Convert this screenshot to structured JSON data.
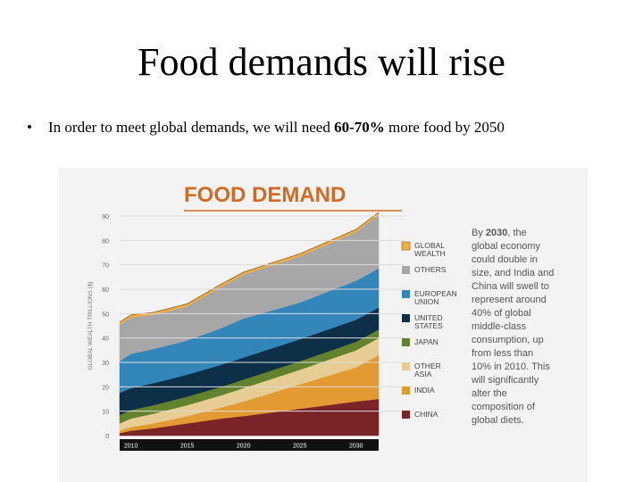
{
  "slide": {
    "title": "Food demands will rise",
    "bullet": {
      "before": "In order to meet global demands, we will need ",
      "bold": "60-70%",
      "after": " more food by 2050"
    }
  },
  "chart_data": {
    "type": "area",
    "stacked": true,
    "title": "FOOD DEMAND",
    "ylabel": "GLOBAL WEALTH TRILLIONS ($)",
    "xlabel": "",
    "ylim": [
      0,
      90
    ],
    "yticks": [
      0,
      10,
      20,
      30,
      40,
      50,
      60,
      70,
      80,
      90
    ],
    "xticks": [
      2010,
      2015,
      2020,
      2025,
      2030
    ],
    "x": [
      2009,
      2010,
      2012,
      2015,
      2018,
      2020,
      2025,
      2030,
      2032
    ],
    "series": [
      {
        "name": "CHINA",
        "color": "#7b2427",
        "values": [
          1,
          2,
          3,
          5,
          7,
          8,
          11,
          14,
          15
        ]
      },
      {
        "name": "INDIA",
        "color": "#e29a33",
        "values": [
          1,
          1.5,
          2,
          3,
          4.5,
          6,
          10,
          14,
          18
        ]
      },
      {
        "name": "OTHER ASIA",
        "color": "#e7cc93",
        "values": [
          3,
          3.5,
          4,
          4.5,
          5,
          5.5,
          6,
          7,
          7
        ]
      },
      {
        "name": "JAPAN",
        "color": "#62822e",
        "values": [
          3.5,
          3.5,
          3.5,
          3.5,
          3.5,
          3.5,
          3.5,
          3.5,
          3.5
        ]
      },
      {
        "name": "UNITED STATES",
        "color": "#0d2f47",
        "values": [
          9,
          9,
          9,
          9,
          9,
          9,
          9,
          9,
          9
        ]
      },
      {
        "name": "EUROPEAN UNION",
        "color": "#3386b9",
        "values": [
          13,
          14,
          14,
          14,
          15,
          16,
          15,
          16,
          16
        ]
      },
      {
        "name": "OTHERS",
        "color": "#a7a7a7",
        "values": [
          15,
          15,
          14,
          14,
          17,
          18,
          19,
          20,
          22
        ]
      },
      {
        "name": "GLOBAL WEALTH",
        "color": "#f0b044",
        "values": [
          1,
          1,
          1,
          1,
          1,
          1,
          1,
          1,
          1
        ]
      }
    ],
    "legend_position": "right",
    "annotation": {
      "prefix": "By ",
      "bold": "2030",
      "lines": [
        ", the",
        "global economy",
        "could double in",
        "size, and India and",
        "China will swell to",
        "represent around",
        "40% of global",
        "middle-class",
        "consumption, up",
        "from less than",
        "10% in 2010. This",
        "will significantly",
        "alter the",
        "composition of",
        "global diets."
      ]
    }
  }
}
